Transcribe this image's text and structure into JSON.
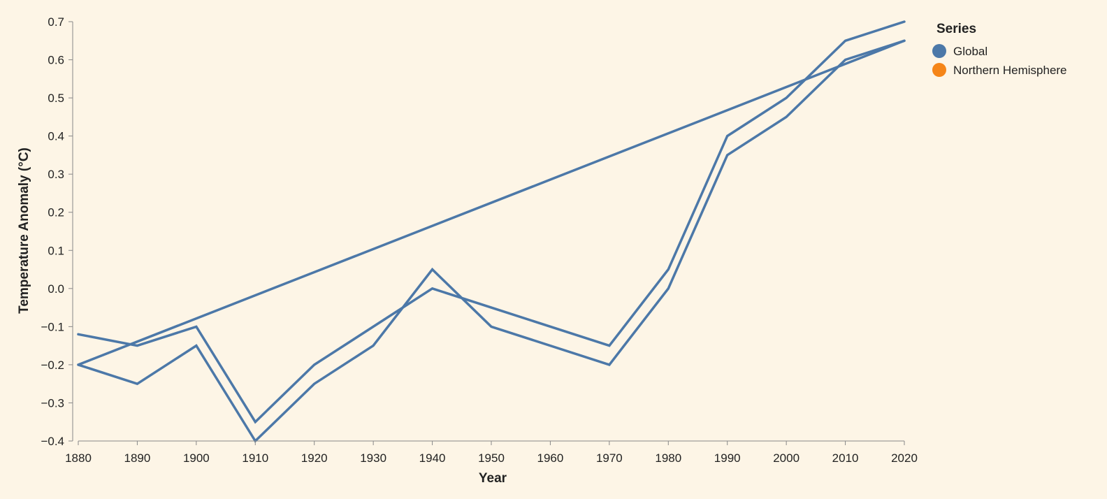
{
  "chart_data": {
    "type": "line",
    "xlabel": "Year",
    "ylabel": "Temperature Anomaly (°C)",
    "xlim": [
      1880,
      2020
    ],
    "ylim": [
      -0.4,
      0.7
    ],
    "x_ticks": [
      "1880",
      "1890",
      "1900",
      "1910",
      "1920",
      "1930",
      "1940",
      "1950",
      "1960",
      "1970",
      "1980",
      "1990",
      "2000",
      "2010",
      "2020"
    ],
    "y_ticks": [
      "0.7",
      "0.6",
      "0.5",
      "0.4",
      "0.3",
      "0.2",
      "0.1",
      "0.0",
      "−0.1",
      "−0.2",
      "−0.3",
      "−0.4"
    ],
    "grid": false,
    "legend": {
      "title": "Series",
      "position": "top-right",
      "items": [
        {
          "label": "Global",
          "color": "#4c78a8"
        },
        {
          "label": "Northern Hemisphere",
          "color": "#f58518"
        }
      ]
    },
    "series": [
      {
        "color": "#4c78a8",
        "x": [
          1880,
          1890,
          1900,
          1910,
          1920,
          1930,
          1940,
          1950,
          1970,
          1980,
          1990,
          2000,
          2010,
          2020
        ],
        "values": [
          -0.12,
          -0.15,
          -0.1,
          -0.35,
          -0.2,
          -0.1,
          0.0,
          -0.05,
          -0.15,
          0.05,
          0.4,
          0.5,
          0.65,
          0.7
        ]
      },
      {
        "color": "#4c78a8",
        "x": [
          1880,
          1890,
          1900,
          1910,
          1920,
          1930,
          1940,
          1950,
          1970,
          1980,
          1990,
          2000,
          2010,
          2020
        ],
        "values": [
          -0.2,
          -0.25,
          -0.15,
          -0.4,
          -0.25,
          -0.15,
          0.05,
          -0.1,
          -0.2,
          0.0,
          0.35,
          0.45,
          0.6,
          0.65
        ]
      },
      {
        "color": "#4c78a8",
        "x": [
          1880,
          2020
        ],
        "values": [
          -0.2,
          0.65
        ]
      }
    ]
  }
}
